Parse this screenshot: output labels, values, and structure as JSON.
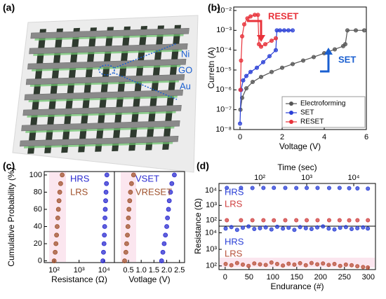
{
  "illustration": {
    "label": "(a)",
    "layers": [
      "Ni",
      "GO",
      "Au"
    ]
  },
  "chart_data": [
    {
      "type": "line",
      "label": "(b)",
      "xlabel": "Voltage (V)",
      "ylabel": "Curretn (A)",
      "xlim": [
        -0.3,
        6
      ],
      "xticks": [
        0,
        2,
        4,
        6
      ],
      "yscale": "log",
      "ylim": [
        1e-08,
        0.015
      ],
      "yticks": [
        {
          "value": 1e-08,
          "label": "10⁻⁸"
        },
        {
          "value": 1e-07,
          "label": "10⁻⁷"
        },
        {
          "value": 1e-06,
          "label": "10⁻⁶"
        },
        {
          "value": 1e-05,
          "label": "10⁻⁵"
        },
        {
          "value": 0.0001,
          "label": "10⁻⁴"
        },
        {
          "value": 0.001,
          "label": "10⁻³"
        },
        {
          "value": 0.01,
          "label": "10⁻²"
        }
      ],
      "legend": "lower right",
      "annotations": [
        {
          "text": "RESET",
          "color": "#e8323a"
        },
        {
          "text": "SET",
          "color": "#1a5fd0"
        }
      ],
      "series": [
        {
          "name": "Electroforming",
          "color": "#555555",
          "x": [
            0.02,
            0.1,
            0.3,
            0.6,
            1,
            1.5,
            2,
            2.5,
            3,
            3.5,
            4,
            4.5,
            4.9,
            5.0,
            5.1,
            5.5,
            5.9
          ],
          "values": [
            1e-07,
            4e-07,
            1.2e-06,
            2.5e-06,
            4.5e-06,
            8e-06,
            1.3e-05,
            2e-05,
            3e-05,
            4.5e-05,
            7e-05,
            0.00011,
            0.00016,
            0.0002,
            0.001,
            0.001,
            0.001
          ]
        },
        {
          "name": "SET",
          "color": "#2a3fd6",
          "x": [
            0,
            0.05,
            0.15,
            0.3,
            0.5,
            0.8,
            1.1,
            1.4,
            1.7,
            1.75,
            1.9,
            2.1,
            2.3,
            2.5
          ],
          "values": [
            2e-08,
            1e-06,
            3e-06,
            5e-06,
            8e-06,
            1.3e-05,
            2.5e-05,
            5e-05,
            0.0001,
            0.001,
            0.001,
            0.001,
            0.001,
            0.001
          ]
        },
        {
          "name": "RESET",
          "color": "#e8323a",
          "x": [
            0.02,
            0.05,
            0.1,
            0.2,
            0.35,
            0.5,
            0.7,
            0.85,
            0.9,
            1.0,
            1.2,
            1.5,
            1.7
          ],
          "values": [
            1e-06,
            3e-05,
            0.0005,
            0.002,
            0.004,
            0.005,
            0.006,
            0.006,
            0.0002,
            0.00015,
            0.0002,
            0.0003,
            0.0004
          ]
        }
      ]
    },
    {
      "type": "scatter",
      "label": "(c)",
      "ylabel": "Cumulative Probability (%)",
      "ylim": [
        -2,
        104
      ],
      "yticks": [
        0,
        20,
        40,
        60,
        80,
        100
      ],
      "panels": [
        {
          "xlabel": "Resistance (Ω)",
          "xscale": "log",
          "xlim": [
            40,
            26000
          ],
          "xticks": [
            {
              "value": 100,
              "label": "10²"
            },
            {
              "value": 1000,
              "label": "10³"
            },
            {
              "value": 10000,
              "label": "10⁴"
            }
          ],
          "series": [
            {
              "name": "HRS",
              "color": "#2a2ad0",
              "x": [
                9000,
                9500,
                10000,
                10300,
                10600,
                10900,
                11200,
                11600,
                12000,
                12500,
                13000
              ],
              "values": [
                0,
                10,
                20,
                30,
                40,
                50,
                60,
                70,
                80,
                90,
                100
              ]
            },
            {
              "name": "LRS",
              "color": "#a0522d",
              "x": [
                100,
                110,
                118,
                125,
                132,
                140,
                148,
                157,
                168,
                182,
                210
              ],
              "values": [
                0,
                10,
                20,
                30,
                40,
                50,
                60,
                70,
                80,
                90,
                100
              ]
            }
          ]
        },
        {
          "xlabel": "Votlage (V)",
          "xlim": [
            -0.05,
            2.7
          ],
          "xticks": [
            0.5,
            {
              "value": 1,
              "label": "1.0"
            },
            1.5,
            {
              "value": 2,
              "label": "2.0"
            },
            2.5
          ],
          "series": [
            {
              "name": "VSET",
              "color": "#2a2ad0",
              "x": [
                1.8,
                1.85,
                1.9,
                1.95,
                2.0,
                2.03,
                2.07,
                2.1,
                2.15,
                2.2,
                2.3
              ],
              "values": [
                0,
                10,
                20,
                30,
                40,
                50,
                60,
                70,
                80,
                90,
                100
              ]
            },
            {
              "name": "VRESET",
              "color": "#a0522d",
              "x": [
                0.35,
                0.4,
                0.43,
                0.46,
                0.48,
                0.5,
                0.52,
                0.55,
                0.58,
                0.62,
                0.7
              ],
              "values": [
                0,
                10,
                20,
                30,
                40,
                50,
                60,
                70,
                80,
                90,
                100
              ]
            }
          ]
        }
      ]
    },
    {
      "type": "scatter",
      "label": "(d)",
      "ylabel": "Resistance (Ω)",
      "panels": [
        {
          "xlabel": "Time (sec)",
          "xaxis": "top",
          "xscale": "log",
          "xlim": [
            13.6,
            29000
          ],
          "xticks": [
            {
              "value": 100,
              "label": "10²"
            },
            {
              "value": 1000,
              "label": "10³"
            },
            {
              "value": 10000,
              "label": "10⁴"
            }
          ],
          "yscale": "log",
          "ylim": [
            40,
            30000
          ],
          "yticks": [
            {
              "value": 100,
              "label": "10²"
            },
            {
              "value": 1000,
              "label": "10³"
            },
            {
              "value": 10000,
              "label": "10⁴"
            }
          ],
          "series": [
            {
              "name": "HRS",
              "color": "#2a3fd6",
              "x": [
                20,
                40,
                70,
                120,
                200,
                350,
                600,
                1000,
                1700,
                3000,
                5000,
                8000,
                12000,
                20000
              ],
              "values": [
                15000,
                15000,
                14800,
                15000,
                15200,
                15000,
                14900,
                15000,
                15100,
                14800,
                15000,
                14500,
                14000,
                13500
              ]
            },
            {
              "name": "LRS",
              "color": "#d04040",
              "x": [
                20,
                40,
                70,
                120,
                200,
                350,
                600,
                1000,
                1700,
                3000,
                5000,
                8000,
                12000,
                20000
              ],
              "values": [
                100,
                100,
                101,
                100,
                99,
                100,
                100,
                100,
                101,
                100,
                100,
                99,
                100,
                100
              ]
            }
          ]
        },
        {
          "xlabel": "Endurance (#)",
          "xlim": [
            -13,
            315
          ],
          "xticks": [
            0,
            50,
            100,
            150,
            200,
            250,
            300
          ],
          "yscale": "log",
          "ylim": [
            60,
            25000
          ],
          "yticks": [
            {
              "value": 100,
              "label": "10²"
            },
            {
              "value": 1000,
              "label": "10³"
            },
            {
              "value": 10000,
              "label": "10⁴"
            }
          ],
          "series": [
            {
              "name": "HRS",
              "color": "#2a3fd6",
              "x": [
                1,
                13,
                25,
                37,
                49,
                61,
                73,
                85,
                97,
                109,
                121,
                133,
                145,
                157,
                169,
                181,
                193,
                205,
                217,
                229,
                241,
                253,
                265,
                277,
                289,
                299
              ],
              "values": [
                18000,
                22000,
                15000,
                20000,
                24000,
                17000,
                19000,
                21000,
                16000,
                23000,
                18000,
                20000,
                15000,
                22000,
                19000,
                17000,
                21000,
                24000,
                18000,
                16000,
                20000,
                22000,
                17000,
                19000,
                21000,
                18000
              ]
            },
            {
              "name": "LRS",
              "color": "#b8503a",
              "x": [
                1,
                13,
                25,
                37,
                49,
                61,
                73,
                85,
                97,
                109,
                121,
                133,
                145,
                157,
                169,
                181,
                193,
                205,
                217,
                229,
                241,
                253,
                265,
                277,
                289,
                299
              ],
              "values": [
                130,
                110,
                150,
                120,
                100,
                140,
                125,
                115,
                160,
                130,
                105,
                135,
                120,
                145,
                110,
                150,
                125,
                140,
                115,
                130,
                100,
                120,
                110,
                95,
                85,
                80
              ]
            }
          ]
        }
      ]
    }
  ]
}
